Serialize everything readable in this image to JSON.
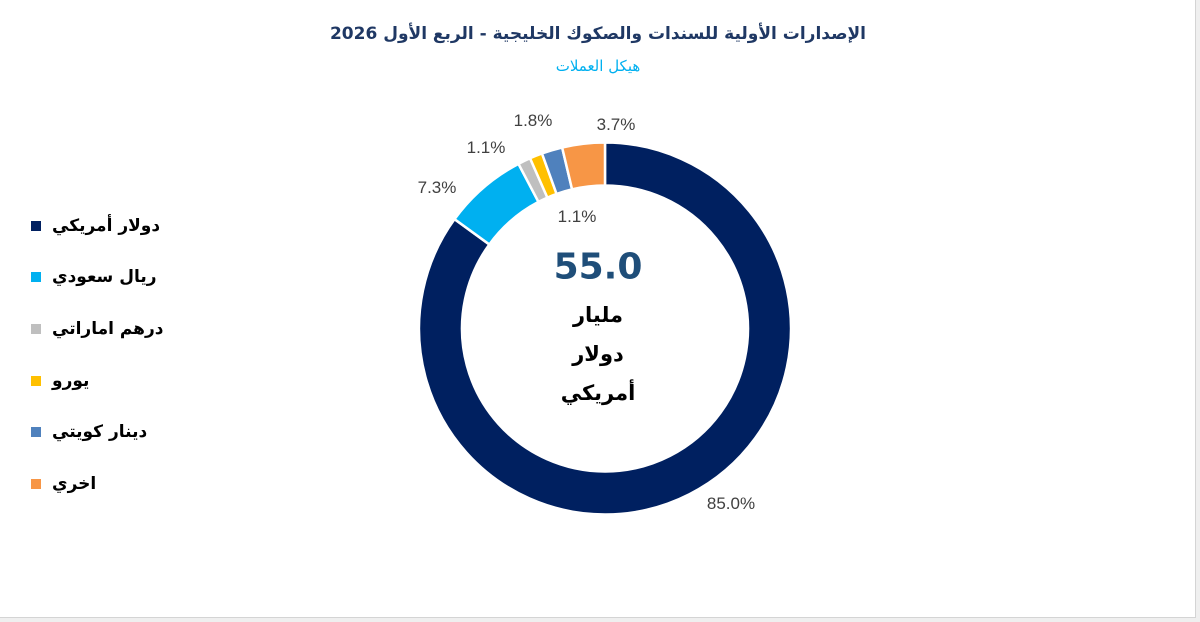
{
  "header": {
    "title": "الإصدارات الأولية للسندات والصكوك الخليجية - الربع الأول 2026",
    "subtitle": "هيكل العملات"
  },
  "center": {
    "total": "55.0",
    "unit_lines": [
      "مليار",
      "دولار",
      "أمريكي"
    ]
  },
  "legend": {
    "items": [
      {
        "label": "دولار أمريكي",
        "color": "#002060"
      },
      {
        "label": "ريال سعودي",
        "color": "#00b0f0"
      },
      {
        "label": "درهم اماراتي",
        "color": "#bfbfbf"
      },
      {
        "label": "يورو",
        "color": "#ffc000"
      },
      {
        "label": "دينار كويتي",
        "color": "#4f81bd"
      },
      {
        "label": "اخري",
        "color": "#f79646"
      }
    ]
  },
  "labels": [
    "85.0%",
    "7.3%",
    "1.1%",
    "1.1%",
    "1.8%",
    "3.7%"
  ],
  "chart_data": {
    "type": "pie",
    "subtype": "donut",
    "title": "الإصدارات الأولية للسندات والصكوك الخليجية - الربع الأول 2026",
    "subtitle": "هيكل العملات",
    "categories": [
      "دولار أمريكي",
      "ريال سعودي",
      "درهم اماراتي",
      "يورو",
      "دينار كويتي",
      "اخري"
    ],
    "values": [
      85.0,
      7.3,
      1.1,
      1.1,
      1.8,
      3.7
    ],
    "unit": "%",
    "colors": [
      "#002060",
      "#00b0f0",
      "#bfbfbf",
      "#ffc000",
      "#4f81bd",
      "#f79646"
    ],
    "center_annotation": "55.0 مليار دولار أمريكي",
    "total": 55.0,
    "legend_position": "left",
    "start_angle": 0,
    "direction": "clockwise"
  }
}
